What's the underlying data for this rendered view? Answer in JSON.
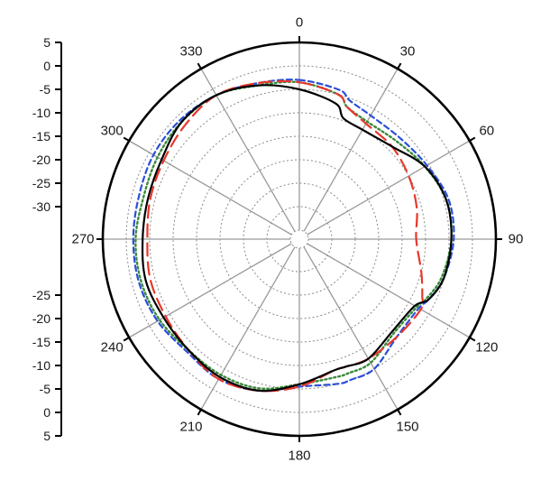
{
  "chart_data": {
    "type": "polar-line",
    "angular_axis": {
      "labels": [
        "0",
        "30",
        "60",
        "90",
        "120",
        "150",
        "180",
        "210",
        "240",
        "270",
        "300",
        "330"
      ],
      "angles_deg": [
        0,
        30,
        60,
        90,
        120,
        150,
        180,
        210,
        240,
        270,
        300,
        330
      ],
      "direction": "clockwise",
      "zero_location": "top"
    },
    "radial_axis": {
      "range": [
        -35,
        5
      ],
      "grid_step": 5,
      "tick_labels": [
        "5",
        "0",
        "-5",
        "-10",
        "-15",
        "-20",
        "-25",
        "-30",
        "-25",
        "-20",
        "-15",
        "-10",
        "-5",
        "0",
        "5"
      ],
      "tick_values": [
        5,
        0,
        -5,
        -10,
        -15,
        -20,
        -25,
        -30,
        -25,
        -20,
        -15,
        -10,
        -5,
        0,
        5
      ]
    },
    "grid": true,
    "legend": "none",
    "series": [
      {
        "style": "solid",
        "color": "#000000",
        "angles": [
          0,
          15,
          20,
          30,
          45,
          60,
          75,
          90,
          105,
          115,
          120,
          135,
          150,
          160,
          165,
          180,
          195,
          210,
          225,
          240,
          255,
          270,
          285,
          300,
          315,
          330,
          345
        ],
        "values": [
          -5,
          -7,
          -9.5,
          -10,
          -9,
          -6,
          -4.5,
          -4.5,
          -5,
          -6.5,
          -8.5,
          -9,
          -7.5,
          -8,
          -8,
          -6,
          -3.5,
          -3,
          -3.5,
          -3.5,
          -3,
          -3.5,
          -3.5,
          -3,
          -1.5,
          -1.5,
          -3
        ]
      },
      {
        "style": "long-dash",
        "color": "#e8372c",
        "angles": [
          0,
          15,
          20,
          30,
          45,
          60,
          75,
          90,
          105,
          115,
          120,
          135,
          150,
          160,
          165,
          180,
          195,
          210,
          225,
          240,
          255,
          270,
          285,
          300,
          315,
          330,
          345
        ],
        "values": [
          -3.5,
          -5,
          -7,
          -8.5,
          -9,
          -10,
          -11,
          -12,
          -10,
          -8,
          -7,
          -7.5,
          -7.5,
          -8,
          -8,
          -5.5,
          -3.5,
          -2.5,
          -3.5,
          -4,
          -4,
          -4.5,
          -4,
          -3.5,
          -2.5,
          -1.5,
          -2.5
        ]
      },
      {
        "style": "dotted",
        "color": "#3a8a3a",
        "angles": [
          0,
          15,
          20,
          30,
          45,
          60,
          75,
          90,
          105,
          115,
          120,
          135,
          150,
          160,
          165,
          180,
          195,
          210,
          225,
          240,
          255,
          270,
          285,
          300,
          315,
          330,
          345
        ],
        "values": [
          -3.5,
          -5,
          -7,
          -8,
          -7.5,
          -6,
          -4.5,
          -4.5,
          -5.5,
          -7,
          -8,
          -8.5,
          -6.5,
          -6.5,
          -6.5,
          -6,
          -4,
          -3.5,
          -3.5,
          -2.5,
          -2,
          -2,
          -2.5,
          -2,
          -1.5,
          -1.5,
          -3
        ]
      },
      {
        "style": "short-dash",
        "color": "#2b4fd8",
        "angles": [
          0,
          15,
          20,
          30,
          45,
          60,
          75,
          90,
          105,
          115,
          120,
          135,
          150,
          160,
          165,
          180,
          195,
          210,
          225,
          240,
          255,
          270,
          285,
          300,
          315,
          330,
          345
        ],
        "values": [
          -3,
          -4,
          -5.5,
          -6.5,
          -6.5,
          -5.5,
          -4,
          -4,
          -5,
          -6.5,
          -7.5,
          -7.5,
          -5,
          -5,
          -5,
          -5.5,
          -3.5,
          -2.5,
          -3,
          -2,
          -1.5,
          -1.5,
          -1.5,
          -1,
          -1,
          -1.5,
          -2.5
        ]
      }
    ]
  }
}
